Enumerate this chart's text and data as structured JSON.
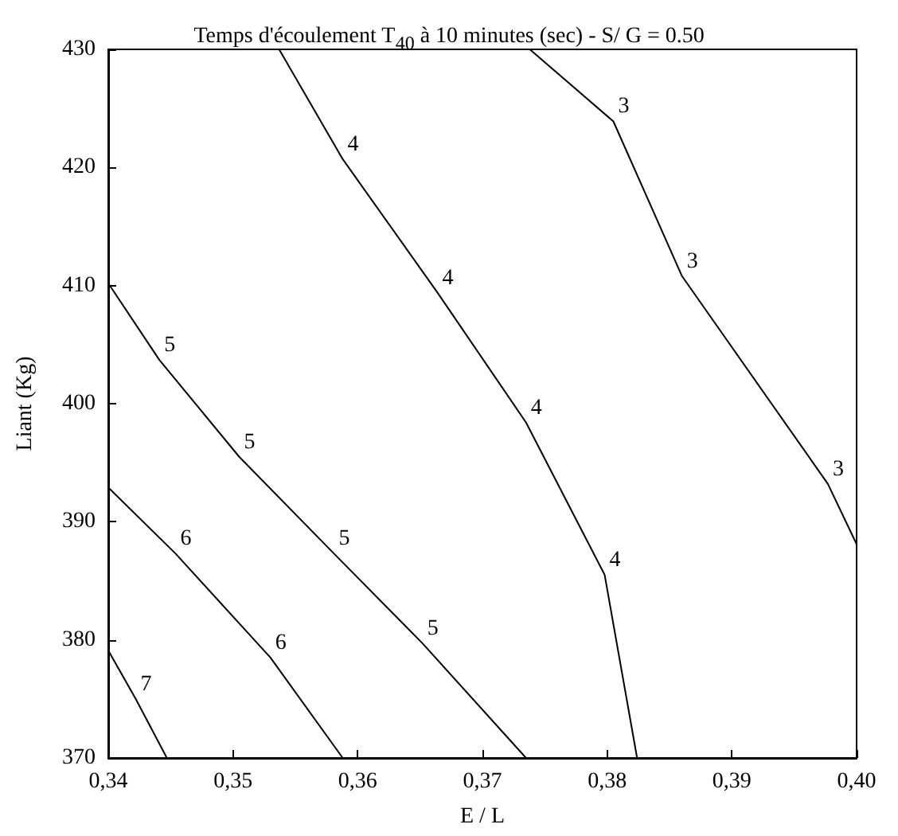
{
  "chart_data": {
    "type": "line",
    "title": "Temps d'écoulement T$_{40}$ à 10 minutes (sec) - S/ G = 0.50",
    "xlabel": "E / L",
    "ylabel": "Liant (Kg)",
    "grid": false,
    "legend": false,
    "marker": "none",
    "line_style": "solid",
    "xlim": [
      0.34,
      0.4
    ],
    "xticks": [
      {
        "value": 0.34,
        "label": "0,34"
      },
      {
        "value": 0.35,
        "label": "0,35"
      },
      {
        "value": 0.36,
        "label": "0,36"
      },
      {
        "value": 0.37,
        "label": "0,37"
      },
      {
        "value": 0.38,
        "label": "0,38"
      },
      {
        "value": 0.39,
        "label": "0,39"
      },
      {
        "value": 0.4,
        "label": "0,40"
      }
    ],
    "ylim": [
      370,
      430
    ],
    "yticks": [
      370,
      380,
      390,
      400,
      410,
      420,
      430
    ],
    "series": [
      {
        "name": "3",
        "color": "#000000",
        "x": [
          0.3738,
          0.3805,
          0.386,
          0.3977,
          0.4
        ],
        "values": [
          430,
          423.9,
          410.8,
          393.2,
          388.1
        ]
      },
      {
        "name": "4",
        "color": "#000000",
        "x": [
          0.3537,
          0.3588,
          0.3664,
          0.3735,
          0.3798,
          0.3824
        ],
        "values": [
          430,
          420.7,
          409.4,
          398.4,
          385.5,
          370
        ]
      },
      {
        "name": "5",
        "color": "#000000",
        "x": [
          0.34,
          0.3441,
          0.3505,
          0.3581,
          0.3652,
          0.3735
        ],
        "values": [
          410.2,
          403.7,
          395.5,
          387.3,
          379.7,
          370
        ]
      },
      {
        "name": "6",
        "color": "#000000",
        "x": [
          0.34,
          0.3454,
          0.353,
          0.3588
        ],
        "values": [
          392.9,
          387.3,
          378.5,
          370
        ]
      },
      {
        "name": "7",
        "color": "#000000",
        "x": [
          0.34,
          0.3422,
          0.3447
        ],
        "values": [
          379.1,
          375,
          370
        ]
      }
    ]
  }
}
